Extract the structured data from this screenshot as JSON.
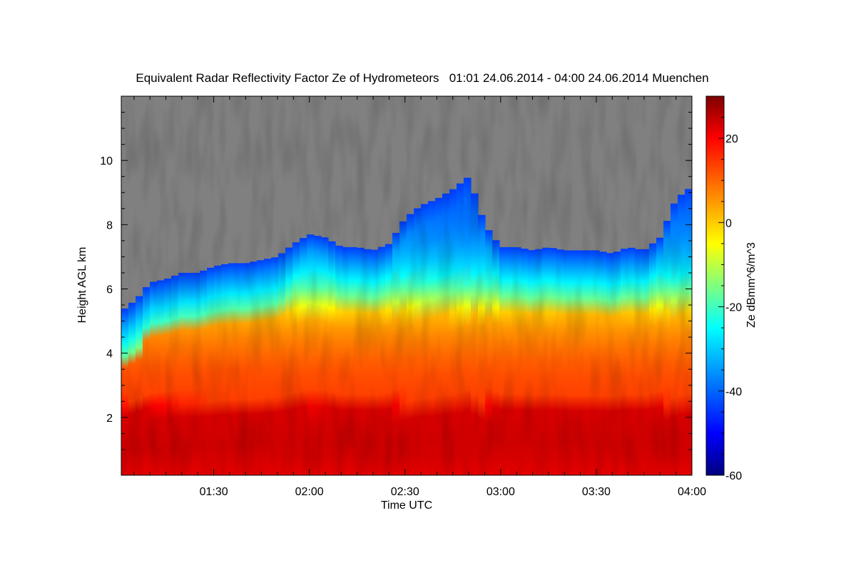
{
  "chart_data": {
    "type": "heatmap",
    "title": "Equivalent Radar Reflectivity Factor Ze of Hydrometeors   01:01 24.06.2014 - 04:00 24.06.2014 Muenchen",
    "xlabel": "Time UTC",
    "ylabel": "Height AGL km",
    "colorbar_label": "Ze dBmm^6/m^3",
    "xlim": [
      "01:01",
      "04:00"
    ],
    "ylim": [
      0.2,
      12.0
    ],
    "zlim": [
      -60,
      30
    ],
    "x_ticks": [
      "01:30",
      "02:00",
      "02:30",
      "03:00",
      "03:30",
      "04:00"
    ],
    "y_ticks": [
      2,
      4,
      6,
      8,
      10
    ],
    "colorbar_ticks": [
      20,
      0,
      -20,
      -40,
      -60
    ],
    "no_signal_color": "#808080",
    "colormap": [
      "#00007f",
      "#0000ff",
      "#007fff",
      "#00ffff",
      "#7fff7f",
      "#ffff00",
      "#ff7f00",
      "#ff0000",
      "#7f0000"
    ],
    "echo_top_km": [
      [
        "01:01",
        5.3
      ],
      [
        "01:06",
        5.7
      ],
      [
        "01:10",
        6.2
      ],
      [
        "01:15",
        6.3
      ],
      [
        "01:20",
        6.5
      ],
      [
        "01:25",
        6.5
      ],
      [
        "01:30",
        6.7
      ],
      [
        "01:35",
        6.8
      ],
      [
        "01:40",
        6.8
      ],
      [
        "01:45",
        6.9
      ],
      [
        "01:50",
        7.0
      ],
      [
        "01:55",
        7.4
      ],
      [
        "02:00",
        7.7
      ],
      [
        "02:05",
        7.6
      ],
      [
        "02:10",
        7.3
      ],
      [
        "02:15",
        7.3
      ],
      [
        "02:20",
        7.2
      ],
      [
        "02:25",
        7.4
      ],
      [
        "02:30",
        8.2
      ],
      [
        "02:35",
        8.6
      ],
      [
        "02:40",
        8.8
      ],
      [
        "02:45",
        9.1
      ],
      [
        "02:50",
        9.5
      ],
      [
        "02:55",
        8.0
      ],
      [
        "03:00",
        7.3
      ],
      [
        "03:05",
        7.3
      ],
      [
        "03:10",
        7.2
      ],
      [
        "03:15",
        7.3
      ],
      [
        "03:20",
        7.2
      ],
      [
        "03:25",
        7.2
      ],
      [
        "03:30",
        7.2
      ],
      [
        "03:35",
        7.1
      ],
      [
        "03:40",
        7.3
      ],
      [
        "03:45",
        7.2
      ],
      [
        "03:50",
        7.6
      ],
      [
        "03:55",
        8.8
      ],
      [
        "04:00",
        9.2
      ]
    ],
    "profile_dbz": [
      [
        0.3,
        22
      ],
      [
        1.0,
        24
      ],
      [
        2.3,
        23
      ],
      [
        2.5,
        14
      ],
      [
        3.5,
        12
      ],
      [
        4.5,
        7
      ],
      [
        5.2,
        2
      ],
      [
        5.6,
        -10
      ],
      [
        6.2,
        -22
      ],
      [
        6.8,
        -30
      ],
      [
        7.5,
        -36
      ],
      [
        8.5,
        -40
      ]
    ]
  }
}
